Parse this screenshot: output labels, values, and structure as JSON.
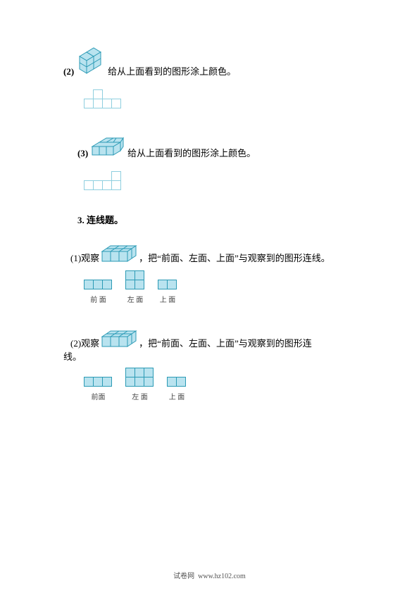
{
  "colors": {
    "cube_fill": "#b9e3ef",
    "cube_stroke": "#2b9ab5",
    "grid_stroke": "#8fcfdf",
    "page_bg": "#ffffff"
  },
  "cell_size": 14,
  "q2": {
    "label": "(2)",
    "tail": "给从上面看到的图形涂上颜色。",
    "answer_grid": {
      "rows": 2,
      "cols": 4,
      "filled": [
        [
          0,
          1
        ],
        [
          1,
          0
        ],
        [
          1,
          1
        ],
        [
          1,
          2
        ],
        [
          1,
          3
        ]
      ]
    }
  },
  "q3": {
    "label": "(3)",
    "tail": "给从上面看到的图形涂上颜色。",
    "answer_grid": {
      "rows": 2,
      "cols": 4,
      "filled": [
        [
          0,
          3
        ],
        [
          1,
          0
        ],
        [
          1,
          1
        ],
        [
          1,
          2
        ],
        [
          1,
          3
        ]
      ]
    }
  },
  "p3": {
    "title": "3. 连线题。",
    "q1": {
      "label": "(1)观察",
      "mid": "，把“前面、左面、上面”与观察到的图形连线。",
      "views": [
        {
          "label": "前 面",
          "cols": 3,
          "rows": 1,
          "cells": [
            [
              0,
              0
            ],
            [
              0,
              1
            ],
            [
              0,
              2
            ]
          ]
        },
        {
          "label": "左 面",
          "cols": 2,
          "rows": 2,
          "cells": [
            [
              0,
              0
            ],
            [
              0,
              1
            ],
            [
              1,
              0
            ],
            [
              1,
              1
            ]
          ]
        },
        {
          "label": "上 面",
          "cols": 2,
          "rows": 1,
          "cells": [
            [
              0,
              0
            ],
            [
              0,
              1
            ]
          ]
        }
      ]
    },
    "q2": {
      "label": "(2)观察",
      "mid": "，把“前面、左面、上面”与观察到的图形连",
      "mid2": "线。",
      "views": [
        {
          "label": "前面",
          "cols": 3,
          "rows": 1,
          "cells": [
            [
              0,
              0
            ],
            [
              0,
              1
            ],
            [
              0,
              2
            ]
          ]
        },
        {
          "label": "左 面",
          "cols": 3,
          "rows": 2,
          "cells": [
            [
              0,
              0
            ],
            [
              0,
              1
            ],
            [
              0,
              2
            ],
            [
              1,
              0
            ],
            [
              1,
              1
            ],
            [
              1,
              2
            ]
          ]
        },
        {
          "label": "上 面",
          "cols": 2,
          "rows": 1,
          "cells": [
            [
              0,
              0
            ],
            [
              0,
              1
            ]
          ]
        }
      ]
    }
  },
  "footer": {
    "label": "试卷网",
    "url": "www.hz102.com"
  }
}
